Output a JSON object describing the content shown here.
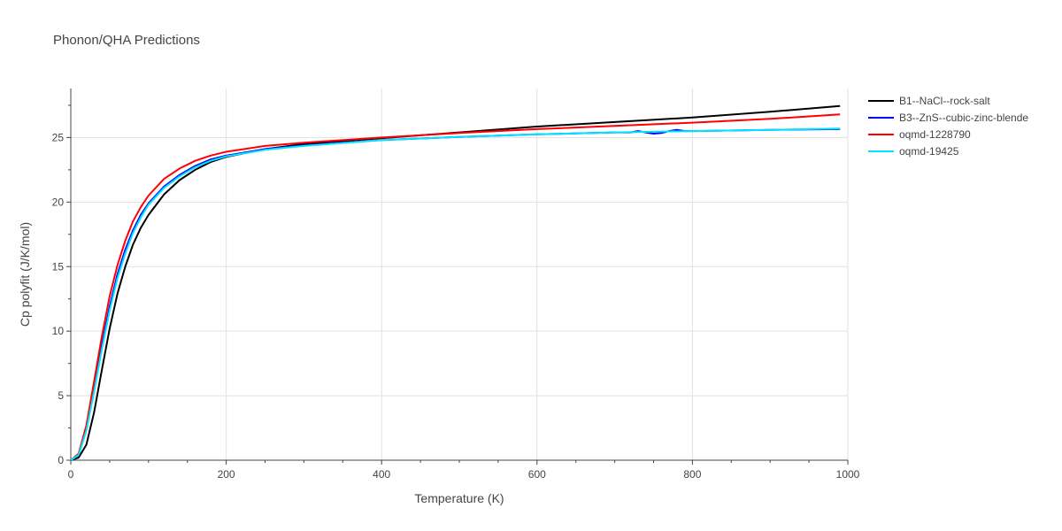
{
  "chart_data": {
    "type": "line",
    "title": "Phonon/QHA Predictions",
    "xlabel": "Temperature (K)",
    "ylabel": "Cp polyfit (J/K/mol)",
    "xlim": [
      0,
      1000
    ],
    "ylim": [
      0,
      28.8
    ],
    "xticks": [
      0,
      200,
      400,
      600,
      800,
      1000
    ],
    "yticks": [
      0,
      5,
      10,
      15,
      20,
      25
    ],
    "grid": true,
    "legend_position": "top-right, outside plot",
    "series": [
      {
        "name": "B1--NaCl--rock-salt",
        "color": "#000000",
        "x": [
          0,
          10,
          20,
          30,
          40,
          50,
          60,
          70,
          80,
          90,
          100,
          120,
          140,
          160,
          180,
          200,
          250,
          300,
          400,
          500,
          600,
          700,
          800,
          900,
          990
        ],
        "y": [
          0,
          0.2,
          1.2,
          3.7,
          7.0,
          10.2,
          12.9,
          15.0,
          16.7,
          18.0,
          19.0,
          20.6,
          21.7,
          22.5,
          23.1,
          23.5,
          24.1,
          24.5,
          24.95,
          25.4,
          25.85,
          26.2,
          26.55,
          27.0,
          27.45
        ]
      },
      {
        "name": "B3--ZnS--cubic-zinc-blende",
        "color": "#0000ff",
        "x": [
          0,
          10,
          20,
          30,
          40,
          50,
          60,
          70,
          80,
          90,
          100,
          120,
          140,
          160,
          180,
          200,
          250,
          300,
          400,
          500,
          600,
          700,
          720,
          730,
          740,
          750,
          760,
          770,
          780,
          790,
          800,
          900,
          990
        ],
        "y": [
          0,
          0.4,
          2.4,
          5.5,
          8.9,
          11.9,
          14.4,
          16.3,
          17.8,
          19.0,
          19.9,
          21.2,
          22.1,
          22.8,
          23.3,
          23.6,
          24.1,
          24.4,
          24.8,
          25.05,
          25.25,
          25.4,
          25.4,
          25.5,
          25.4,
          25.3,
          25.35,
          25.5,
          25.6,
          25.5,
          25.5,
          25.6,
          25.65
        ]
      },
      {
        "name": "oqmd-1228790",
        "color": "#ff0000",
        "x": [
          0,
          10,
          20,
          30,
          40,
          50,
          60,
          70,
          80,
          90,
          100,
          120,
          140,
          160,
          180,
          200,
          250,
          300,
          400,
          500,
          600,
          700,
          800,
          900,
          990
        ],
        "y": [
          0,
          0.5,
          2.7,
          6.1,
          9.6,
          12.7,
          15.1,
          17.0,
          18.5,
          19.6,
          20.5,
          21.8,
          22.6,
          23.2,
          23.6,
          23.9,
          24.35,
          24.6,
          25.0,
          25.35,
          25.65,
          25.9,
          26.15,
          26.45,
          26.8
        ]
      },
      {
        "name": "oqmd-19425",
        "color": "#00e5ff",
        "x": [
          0,
          10,
          20,
          30,
          40,
          50,
          60,
          70,
          80,
          90,
          100,
          120,
          140,
          160,
          180,
          200,
          250,
          300,
          400,
          500,
          600,
          700,
          800,
          900,
          990
        ],
        "y": [
          0,
          0.4,
          2.3,
          5.3,
          8.6,
          11.6,
          14.1,
          16.0,
          17.6,
          18.8,
          19.8,
          21.1,
          22.0,
          22.7,
          23.2,
          23.55,
          24.05,
          24.35,
          24.8,
          25.05,
          25.25,
          25.4,
          25.5,
          25.6,
          25.7
        ]
      }
    ]
  }
}
